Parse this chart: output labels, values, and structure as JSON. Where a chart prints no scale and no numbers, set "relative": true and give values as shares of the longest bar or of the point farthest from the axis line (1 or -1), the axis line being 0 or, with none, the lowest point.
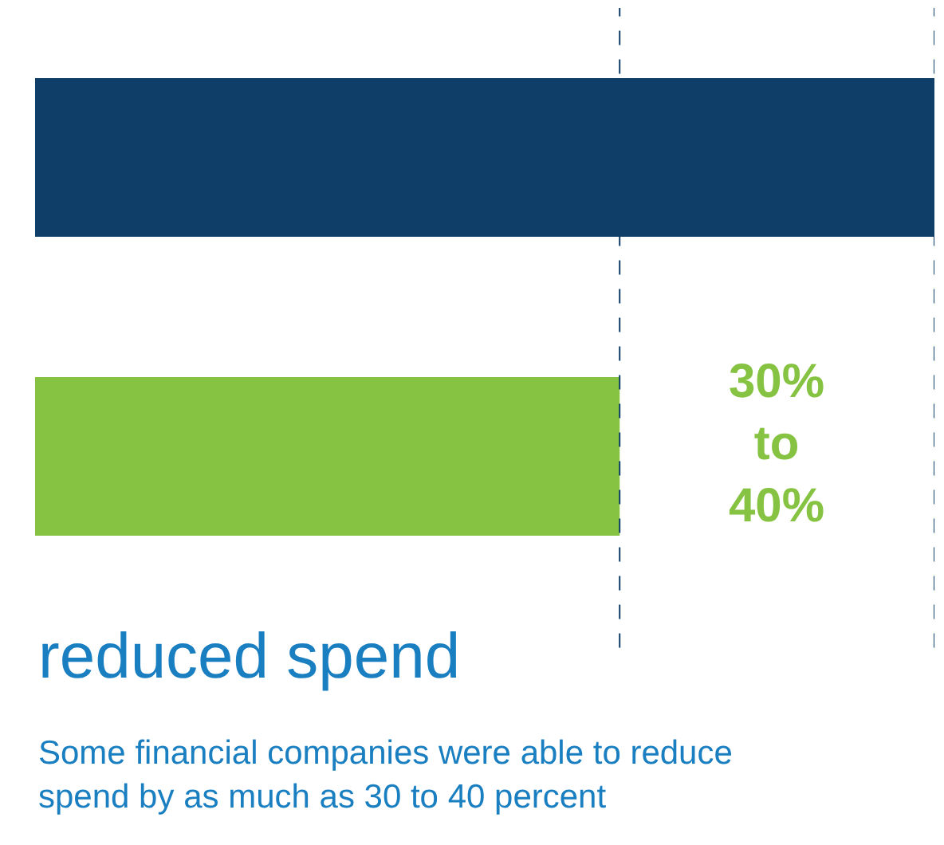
{
  "chart_data": {
    "type": "bar",
    "orientation": "horizontal",
    "relative": true,
    "categories": [
      null,
      null
    ],
    "colors": [
      "#0f3f68",
      "#86c342"
    ],
    "values": [
      1,
      0.65
    ],
    "ref_lines": [
      {
        "axis": "x",
        "value": 0.65,
        "line_style": "dashed",
        "color": "#0f3f68"
      },
      {
        "axis": "x",
        "value": 1,
        "line_style": "dashed",
        "color": "#0f3f68"
      }
    ],
    "annotations": [
      "30% to 40%",
      "reduced spend",
      "Some financial companies were able to reduce spend by as much as 30 to 40 percent"
    ]
  }
}
